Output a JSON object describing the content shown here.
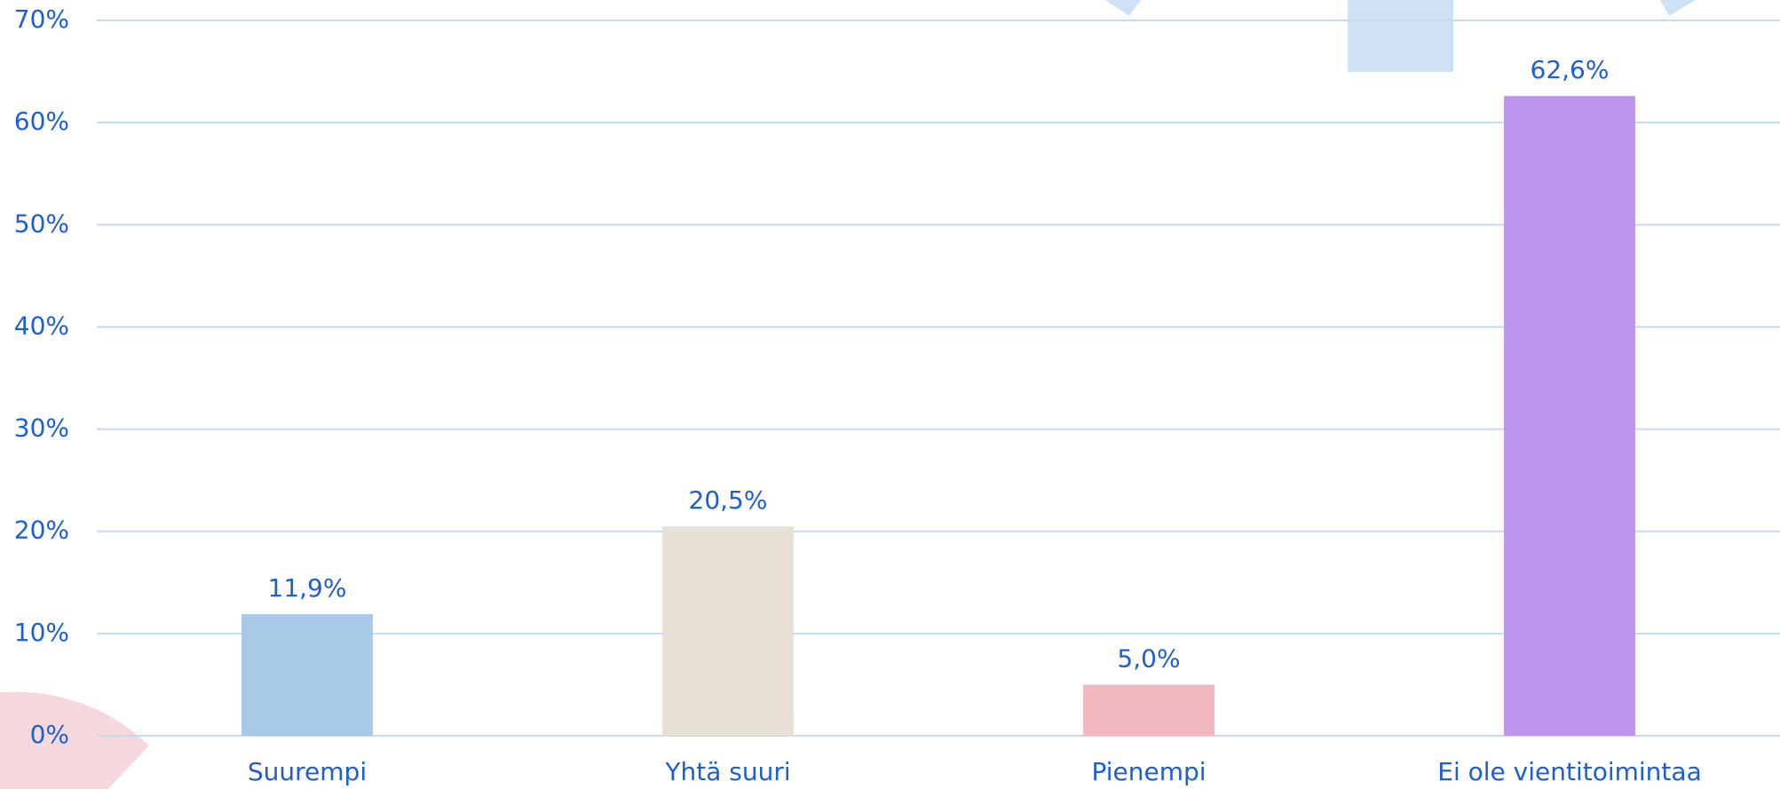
{
  "chart_data": {
    "type": "bar",
    "categories": [
      "Suurempi",
      "Yhtä suuri",
      "Pienempi",
      "Ei ole vientitoimintaa"
    ],
    "values": [
      11.9,
      20.5,
      5.0,
      62.6
    ],
    "value_labels": [
      "11,9%",
      "20,5%",
      "5,0%",
      "62,6%"
    ],
    "colors": [
      "#a8c9e8",
      "#e7e0d4",
      "#f2b8bf",
      "#bc95ee"
    ],
    "ylim": [
      0,
      70
    ],
    "yticks": [
      {
        "value": 0,
        "label": "0%"
      },
      {
        "value": 10,
        "label": "10%"
      },
      {
        "value": 20,
        "label": "20%"
      },
      {
        "value": 30,
        "label": "30%"
      },
      {
        "value": 40,
        "label": "40%"
      },
      {
        "value": 50,
        "label": "50%"
      },
      {
        "value": 60,
        "label": "60%"
      },
      {
        "value": 70,
        "label": "70%"
      }
    ],
    "grid": true
  }
}
